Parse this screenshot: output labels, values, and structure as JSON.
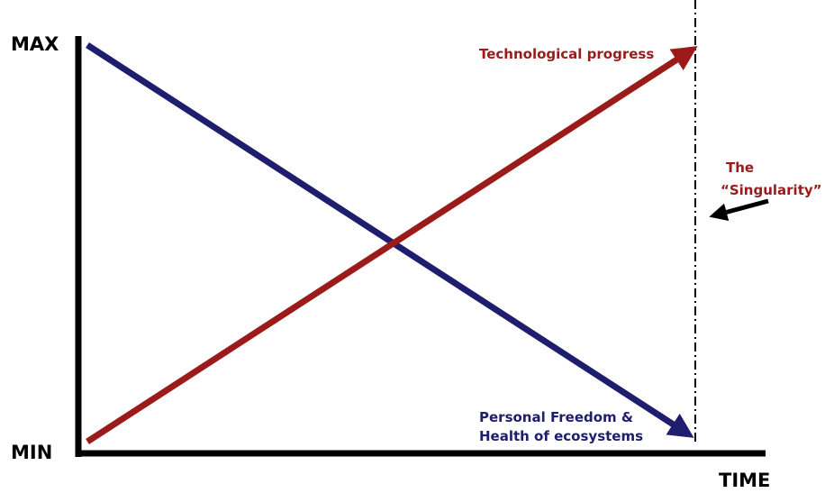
{
  "axes": {
    "y_max": "MAX",
    "y_min": "MIN",
    "x": "TIME"
  },
  "lines": [
    {
      "label": "Technological progress"
    },
    {
      "label_lines": [
        "Personal Freedom &",
        "Health of ecosystems"
      ]
    }
  ],
  "annotation": {
    "lines": [
      "The",
      "“Singularity”"
    ]
  }
}
